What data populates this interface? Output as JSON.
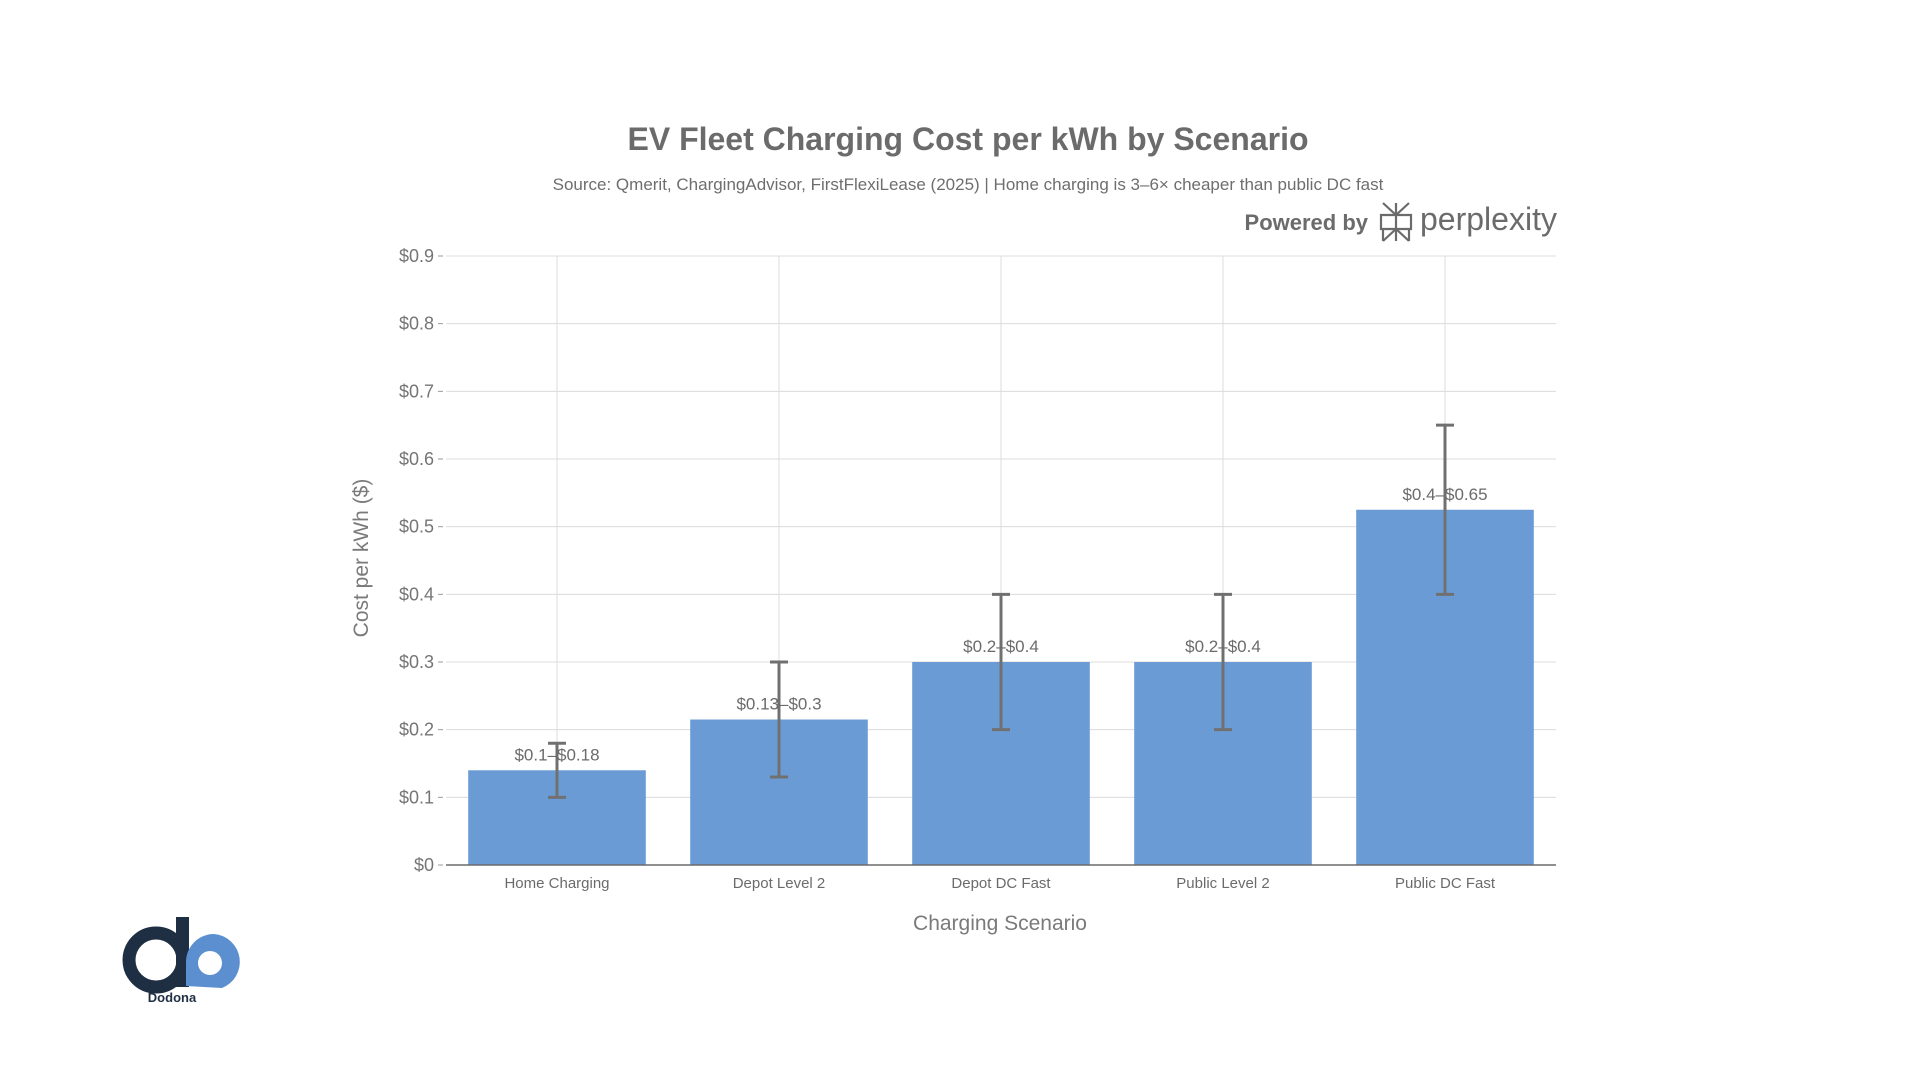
{
  "chart_data": {
    "type": "bar",
    "title": "EV Fleet Charging Cost per kWh by Scenario",
    "subtitle": "Source: Qmerit, ChargingAdvisor, FirstFlexiLease (2025) | Home charging is 3–6× cheaper than public DC fast",
    "xlabel": "Charging Scenario",
    "ylabel": "Cost per kWh ($)",
    "ylim": [
      0,
      0.9
    ],
    "yticks": [
      0,
      0.1,
      0.2,
      0.3,
      0.4,
      0.5,
      0.6,
      0.7,
      0.8,
      0.9
    ],
    "ytick_labels": [
      "$0",
      "$0.1",
      "$0.2",
      "$0.3",
      "$0.4",
      "$0.5",
      "$0.6",
      "$0.7",
      "$0.8",
      "$0.9"
    ],
    "grid": true,
    "bar_color": "#6a9bd5",
    "error_color": "#707070",
    "categories": [
      "Home Charging",
      "Depot Level 2",
      "Depot DC Fast",
      "Public Level 2",
      "Public DC Fast"
    ],
    "values": [
      0.14,
      0.215,
      0.3,
      0.3,
      0.525
    ],
    "error_low": [
      0.1,
      0.13,
      0.2,
      0.2,
      0.4
    ],
    "error_high": [
      0.18,
      0.3,
      0.4,
      0.4,
      0.65
    ],
    "data_labels": [
      "$0.1–$0.18",
      "$0.13–$0.3",
      "$0.2–$0.4",
      "$0.2–$0.4",
      "$0.4–$0.65"
    ]
  },
  "branding": {
    "powered_by": "Powered by",
    "brand_name": "perplexity",
    "brand_icon": "perplexity-logo-icon",
    "corner_logo": "Dodona",
    "corner_logo_colors": {
      "dark": "#1f2f43",
      "light": "#5b8fd0"
    }
  }
}
